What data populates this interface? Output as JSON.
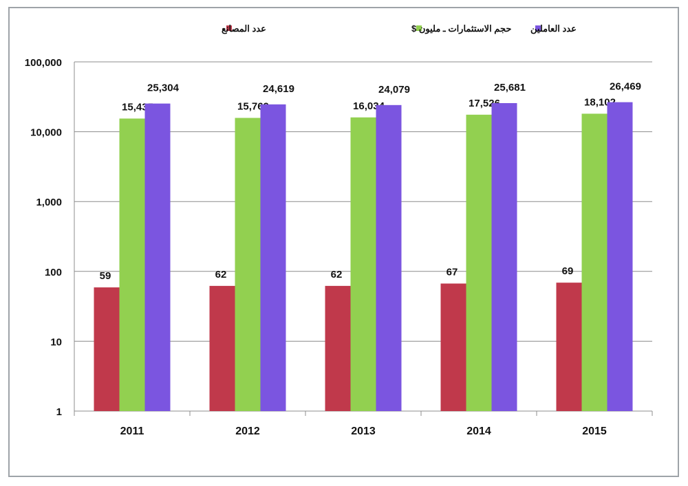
{
  "chart_data": {
    "type": "bar",
    "title": "",
    "xlabel": "",
    "ylabel": "",
    "y_scale": "log",
    "ylim": [
      1,
      100000
    ],
    "grid": true,
    "legend_placement": "top",
    "categories": [
      "2011",
      "2012",
      "2013",
      "2014",
      "2015"
    ],
    "y_ticks": [
      1,
      10,
      100,
      1000,
      10000,
      100000
    ],
    "y_tick_labels": [
      "1",
      "10",
      "100",
      "1,000",
      "10,000",
      "100,000"
    ],
    "series": [
      {
        "name": "عدد المصانع",
        "color": "#c0394b",
        "values": [
          59,
          62,
          62,
          67,
          69
        ],
        "labels": [
          "59",
          "62",
          "62",
          "67",
          "69"
        ]
      },
      {
        "name": "حجم الاستثمارات ـ مليون $",
        "color": "#92d050",
        "values": [
          15435,
          15769,
          16034,
          17526,
          18102
        ],
        "labels": [
          "15,435",
          "15,769",
          "16,034",
          "17,526",
          "18,102"
        ]
      },
      {
        "name": "عدد العاملين",
        "color": "#7b55e0",
        "values": [
          25304,
          24619,
          24079,
          25681,
          26469
        ],
        "labels": [
          "25,304",
          "24,619",
          "24,079",
          "25,681",
          "26,469"
        ]
      }
    ]
  }
}
